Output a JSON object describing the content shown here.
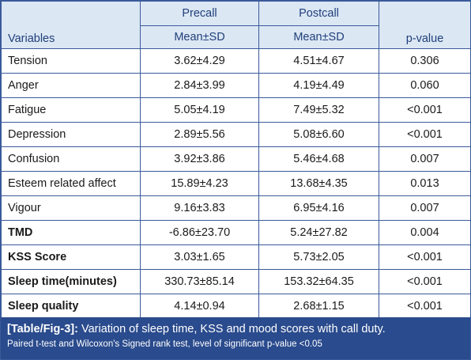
{
  "header": {
    "variables": "Variables",
    "precall": "Precall",
    "postcall": "Postcall",
    "precall_sub": "Mean±SD",
    "postcall_sub": "Mean±SD",
    "pvalue": "p-value"
  },
  "rows": [
    {
      "variable": "Tension",
      "pre": "3.62±4.29",
      "post": "4.51±4.67",
      "p": "0.306",
      "bold": false
    },
    {
      "variable": "Anger",
      "pre": "2.84±3.99",
      "post": "4.19±4.49",
      "p": "0.060",
      "bold": false
    },
    {
      "variable": "Fatigue",
      "pre": "5.05±4.19",
      "post": "7.49±5.32",
      "p": "<0.001",
      "bold": false
    },
    {
      "variable": "Depression",
      "pre": "2.89±5.56",
      "post": "5.08±6.60",
      "p": "<0.001",
      "bold": false
    },
    {
      "variable": "Confusion",
      "pre": "3.92±3.86",
      "post": "5.46±4.68",
      "p": "0.007",
      "bold": false
    },
    {
      "variable": "Esteem related affect",
      "pre": "15.89±4.23",
      "post": "13.68±4.35",
      "p": "0.013",
      "bold": false
    },
    {
      "variable": "Vigour",
      "pre": "9.16±3.83",
      "post": "6.95±4.16",
      "p": "0.007",
      "bold": false
    },
    {
      "variable": "TMD",
      "pre": "-6.86±23.70",
      "post": "5.24±27.82",
      "p": "0.004",
      "bold": true
    },
    {
      "variable": "KSS Score",
      "pre": "3.03±1.65",
      "post": "5.73±2.05",
      "p": "<0.001",
      "bold": true
    },
    {
      "variable": "Sleep time(minutes)",
      "pre": "330.73±85.14",
      "post": "153.32±64.35",
      "p": "<0.001",
      "bold": true
    },
    {
      "variable": "Sleep quality",
      "pre": "4.14±0.94",
      "post": "2.68±1.15",
      "p": "<0.001",
      "bold": true
    }
  ],
  "caption": {
    "tag": "[Table/Fig-3]:",
    "text": " Variation of sleep time, KSS and mood scores with call duty.",
    "note": "Paired t-test and Wilcoxon's Signed rank test, level of significant p-value <0.05"
  },
  "colors": {
    "header_bg": "#dce7f4",
    "header_text": "#1f3f7a",
    "border": "#3a5a9a",
    "caption_bg": "#2a4b8d"
  }
}
